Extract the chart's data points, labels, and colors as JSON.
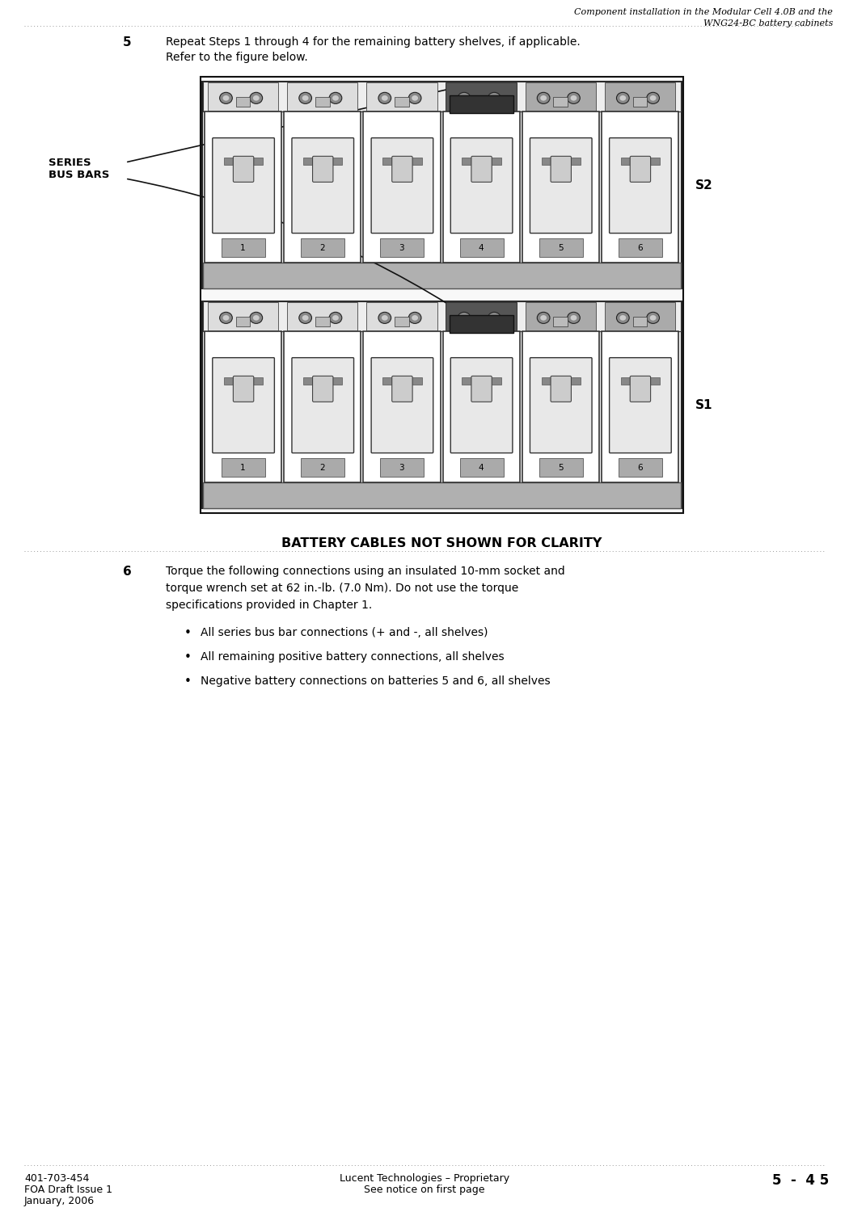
{
  "header_text_line1": "Component installation in the Modular Cell 4.0B and the",
  "header_text_line2": "WNG24-BC battery cabinets",
  "step5_number": "5",
  "step5_text_line1": "Repeat Steps 1 through 4 for the remaining battery shelves, if applicable.",
  "step5_text_line2": "Refer to the figure below.",
  "step6_number": "6",
  "step6_text_line1": "Torque the following connections using an insulated 10-mm socket and",
  "step6_text_line2": "torque wrench set at 62 in.-lb. (7.0 Nm). Do not use the torque",
  "step6_text_line3": "specifications provided in Chapter 1.",
  "bullet1": "All series bus bar connections (+ and -, all shelves)",
  "bullet2": "All remaining positive battery connections, all shelves",
  "bullet3": "Negative battery connections on batteries 5 and 6, all shelves",
  "series_bus_bars_label": "SERIES\nBUS BARS",
  "s1_label": "S1",
  "s2_label": "S2",
  "caption": "BATTERY CABLES NOT SHOWN FOR CLARITY",
  "footer_left1": "401-703-454",
  "footer_left2": "FOA Draft Issue 1",
  "footer_left3": "January, 2006",
  "footer_center1": "Lucent Technologies – Proprietary",
  "footer_center2": "See notice on first page",
  "footer_right": "5  -  4 5",
  "bg_color": "#ffffff"
}
